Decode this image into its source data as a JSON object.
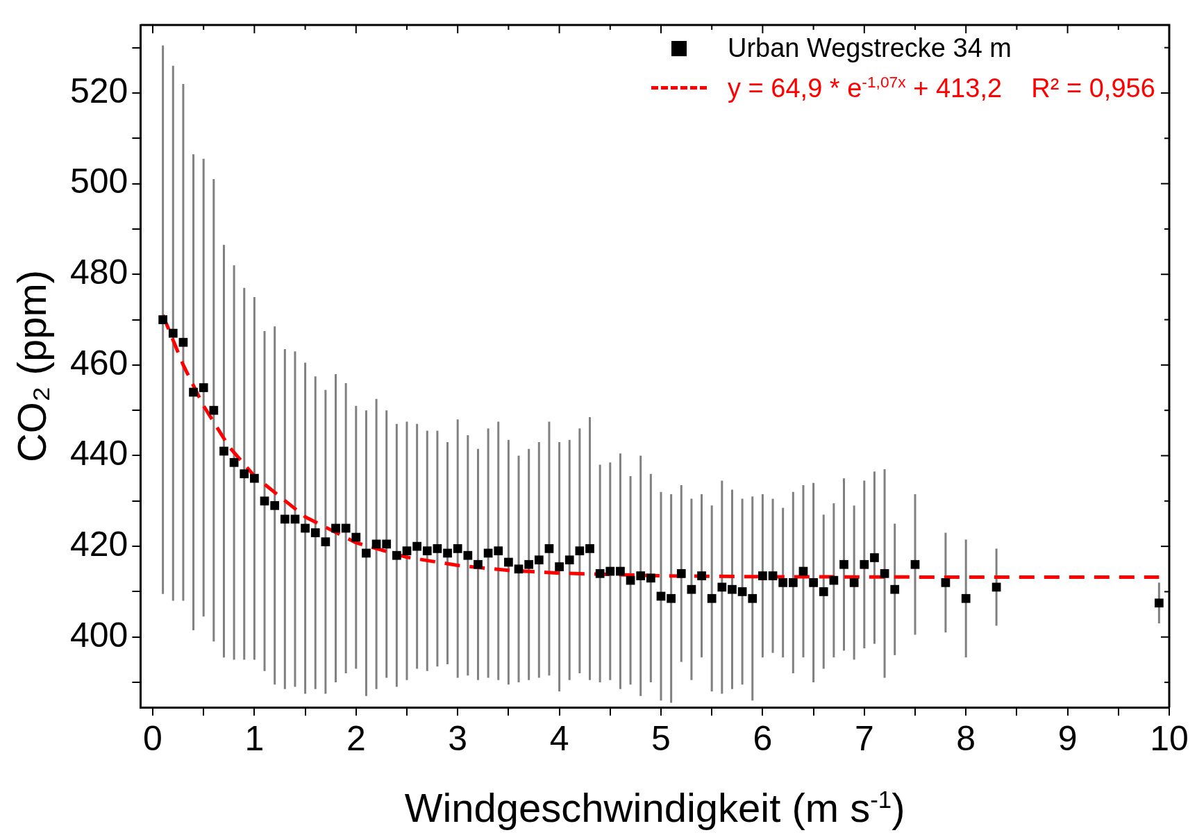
{
  "chart_data": {
    "type": "scatter",
    "xlabel": "Windgeschwindigkeit (m s$^{-1}$)",
    "ylabel": "CO₂ (ppm)",
    "xlim": [
      -0.12,
      10
    ],
    "ylim": [
      384.5,
      535
    ],
    "xticks": [
      0,
      {
        "value": 0.5,
        "label": null
      },
      1,
      {
        "value": 1.5,
        "label": null
      },
      2,
      {
        "value": 2.5,
        "label": null
      },
      3,
      {
        "value": 3.5,
        "label": null
      },
      4,
      {
        "value": 4.5,
        "label": null
      },
      5,
      {
        "value": 5.5,
        "label": null
      },
      6,
      {
        "value": 6.5,
        "label": null
      },
      7,
      {
        "value": 7.5,
        "label": null
      },
      8,
      {
        "value": 8.5,
        "label": null
      },
      9,
      {
        "value": 9.5,
        "label": null
      },
      10
    ],
    "yticks": [
      {
        "value": 390,
        "label": null
      },
      400,
      {
        "value": 410,
        "label": null
      },
      420,
      {
        "value": 430,
        "label": null
      },
      440,
      {
        "value": 450,
        "label": null
      },
      460,
      {
        "value": 470,
        "label": null
      },
      480,
      {
        "value": 490,
        "label": null
      },
      500,
      {
        "value": 510,
        "label": null
      },
      520,
      {
        "value": 530,
        "label": null
      }
    ],
    "grid": false,
    "legend": "top right",
    "series": [
      {
        "name": "Urban Wegstrecke 34 m",
        "color": "#000000",
        "marker": "square",
        "x": [
          0.1,
          0.2,
          0.3,
          0.4,
          0.5,
          0.6,
          0.7,
          0.8,
          0.9,
          1.0,
          1.1,
          1.2,
          1.3,
          1.4,
          1.5,
          1.6,
          1.7,
          1.8,
          1.9,
          2.0,
          2.1,
          2.2,
          2.3,
          2.4,
          2.5,
          2.6,
          2.7,
          2.8,
          2.9,
          3.0,
          3.1,
          3.2,
          3.3,
          3.4,
          3.5,
          3.6,
          3.7,
          3.8,
          3.9,
          4.0,
          4.1,
          4.2,
          4.3,
          4.4,
          4.5,
          4.6,
          4.7,
          4.8,
          4.9,
          5.0,
          5.1,
          5.2,
          5.3,
          5.4,
          5.5,
          5.6,
          5.7,
          5.8,
          5.9,
          6.0,
          6.1,
          6.2,
          6.3,
          6.4,
          6.5,
          6.6,
          6.7,
          6.8,
          6.9,
          7.0,
          7.1,
          7.2,
          7.3,
          7.5,
          7.8,
          8.0,
          8.3,
          9.9
        ],
        "values": [
          470,
          467,
          465,
          454,
          455,
          450,
          441,
          438.5,
          436,
          435,
          430,
          429,
          426,
          426,
          424,
          423,
          421,
          424,
          424,
          422,
          418.5,
          420.5,
          420.5,
          418,
          419,
          420,
          419,
          419.5,
          418.5,
          419.5,
          418,
          416,
          418.5,
          419,
          416.5,
          415,
          416,
          417,
          419.5,
          415.5,
          417,
          419,
          419.5,
          414,
          414.5,
          414.5,
          412.5,
          413.5,
          413,
          409,
          408.5,
          414,
          410.5,
          413.5,
          408.5,
          411,
          410.5,
          410,
          408.5,
          413.5,
          413.5,
          412,
          412,
          414.5,
          412,
          410,
          412.5,
          416,
          412,
          416,
          417.5,
          414,
          410.5,
          416,
          412,
          408.5,
          411,
          407.5
        ],
        "errors": [
          60.5,
          59,
          57,
          52.5,
          50.5,
          51,
          45.5,
          43.5,
          41,
          40,
          37.5,
          39.5,
          37.5,
          37,
          36.5,
          34.5,
          33.5,
          34,
          32,
          29,
          31.5,
          32,
          29.5,
          29,
          28.5,
          27,
          26.5,
          26,
          24.5,
          28.5,
          26.5,
          25.5,
          27.5,
          28.5,
          27,
          25,
          25.5,
          26,
          28,
          27.5,
          26.5,
          27,
          29,
          24,
          24,
          26,
          23,
          26.5,
          23,
          23,
          23,
          19.5,
          20,
          18,
          20.5,
          23.5,
          22,
          20.5,
          22.5,
          18,
          17,
          16.5,
          20,
          19,
          22,
          17,
          17,
          19,
          17,
          18.5,
          19,
          23,
          14.5,
          15.5,
          11,
          13,
          8.5,
          4.5
        ]
      },
      {
        "name": "y = 64,9 * e$^{-1,07x}$ + 413,2    R² = 0,956",
        "color": "#ff0000",
        "type": "line",
        "line_style": "dashed",
        "marker": "none",
        "x": [
          0.1,
          0.3,
          0.5,
          0.75,
          1,
          1.5,
          2,
          2.5,
          3,
          3.5,
          4,
          5,
          6,
          8,
          9.9
        ],
        "values": [
          471,
          460,
          451,
          442,
          435.5,
          426.5,
          420.8,
          417.6,
          415.8,
          414.7,
          414.1,
          413.5,
          413.3,
          413.2,
          413.2
        ]
      }
    ]
  }
}
